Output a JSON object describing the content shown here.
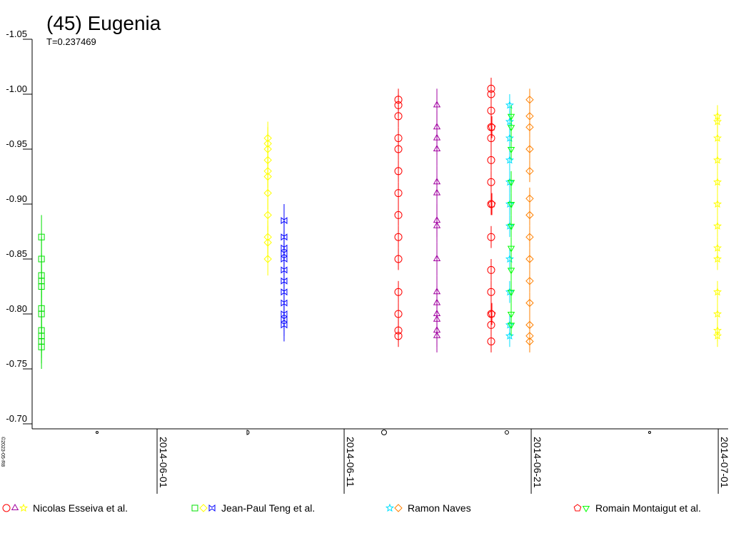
{
  "chart_data": {
    "type": "scatter",
    "title": "(45) Eugenia",
    "subtitle": "T=0.237469",
    "credit": "©2023-05-R8",
    "xlim": [
      2456802.82,
      2456840.03
    ],
    "xticks": [
      {
        "value": 2456809.5,
        "label": "2014-06-01"
      },
      {
        "value": 2456819.5,
        "label": "2014-06-11"
      },
      {
        "value": 2456829.5,
        "label": "2014-06-21"
      },
      {
        "value": 2456839.5,
        "label": "2014-07-01"
      }
    ],
    "ylim": [
      -1.05,
      -0.7
    ],
    "yticks": [
      -1.05,
      {
        "value": -1,
        "label": "-1.00"
      },
      -0.95,
      {
        "value": -0.9,
        "label": "-0.90"
      },
      -0.85,
      {
        "value": -0.8,
        "label": "-0.80"
      },
      -0.75,
      {
        "value": -0.7,
        "label": "-0.70"
      }
    ],
    "groups": [
      {
        "name": "Nicolas Esseiva et al.",
        "series": [
          {
            "marker": "circle",
            "color": "#ff0000",
            "x": 2456822.4,
            "error": 0.01,
            "values": [
              -0.78,
              -0.785,
              -0.8,
              -0.82,
              -0.85,
              -0.87,
              -0.89,
              -0.91,
              -0.93,
              -0.95,
              -0.96,
              -0.98,
              -0.99,
              -0.995
            ]
          },
          {
            "marker": "circle",
            "color": "#ff0000",
            "x": 2456827.36,
            "error": 0.01,
            "values": [
              -0.775,
              -0.79,
              -0.8,
              -0.82,
              -0.84,
              -0.87,
              -0.9,
              -0.92,
              -0.94,
              -0.96,
              -0.97,
              -0.985,
              -1.0,
              -1.005
            ]
          },
          {
            "marker": "triangle",
            "color": "#a000a0",
            "x": 2456824.46,
            "error": 0.015,
            "values": [
              -0.78,
              -0.785,
              -0.795,
              -0.8,
              -0.81,
              -0.82,
              -0.85,
              -0.88,
              -0.885,
              -0.91,
              -0.92,
              -0.95,
              -0.96,
              -0.97,
              -0.99
            ]
          },
          {
            "marker": "star",
            "color": "#ffff00",
            "x": 2456839.46,
            "error": 0.01,
            "values": [
              -0.78,
              -0.785,
              -0.8,
              -0.82,
              -0.85,
              -0.86,
              -0.88,
              -0.9,
              -0.92,
              -0.94,
              -0.96,
              -0.975,
              -0.98
            ]
          }
        ]
      },
      {
        "name": "Jean-Paul Teng et al.",
        "series": [
          {
            "marker": "square",
            "color": "#00e000",
            "x": 2456803.32,
            "error": 0.02,
            "values": [
              -0.77,
              -0.775,
              -0.78,
              -0.785,
              -0.8,
              -0.805,
              -0.825,
              -0.83,
              -0.835,
              -0.85,
              -0.87
            ]
          },
          {
            "marker": "diamond",
            "color": "#ffff00",
            "x": 2456815.42,
            "error": 0.015,
            "values": [
              -0.85,
              -0.865,
              -0.87,
              -0.89,
              -0.91,
              -0.925,
              -0.93,
              -0.94,
              -0.95,
              -0.955,
              -0.96
            ]
          },
          {
            "marker": "bowtie",
            "color": "#0000ff",
            "x": 2456816.29,
            "error": 0.015,
            "values": [
              -0.79,
              -0.795,
              -0.8,
              -0.81,
              -0.82,
              -0.83,
              -0.84,
              -0.85,
              -0.855,
              -0.86,
              -0.87,
              -0.885
            ]
          }
        ]
      },
      {
        "name": "Ramon Naves",
        "series": [
          {
            "marker": "star",
            "color": "#00e0ff",
            "x": 2456828.35,
            "error": 0.01,
            "values": [
              -0.78,
              -0.79,
              -0.82,
              -0.85,
              -0.88,
              -0.9,
              -0.92,
              -0.94,
              -0.96,
              -0.975,
              -0.99
            ]
          },
          {
            "marker": "diamond",
            "color": "#ff8000",
            "x": 2456829.42,
            "error": 0.01,
            "values": [
              -0.775,
              -0.78,
              -0.79,
              -0.81,
              -0.83,
              -0.85,
              -0.87,
              -0.89,
              -0.905,
              -0.93,
              -0.95,
              -0.97,
              -0.98,
              -0.995
            ]
          }
        ]
      },
      {
        "name": "Romain Montaigut et al.",
        "series": [
          {
            "marker": "pentagon",
            "color": "#ff0000",
            "x": 2456827.4,
            "error": 0.01,
            "values": [
              -0.8,
              -0.9,
              -0.97
            ]
          },
          {
            "marker": "triangle-down",
            "color": "#00ff00",
            "x": 2456828.43,
            "error": 0.01,
            "values": [
              -0.79,
              -0.8,
              -0.82,
              -0.84,
              -0.86,
              -0.88,
              -0.9,
              -0.92,
              -0.95,
              -0.97,
              -0.98
            ]
          }
        ]
      }
    ]
  }
}
